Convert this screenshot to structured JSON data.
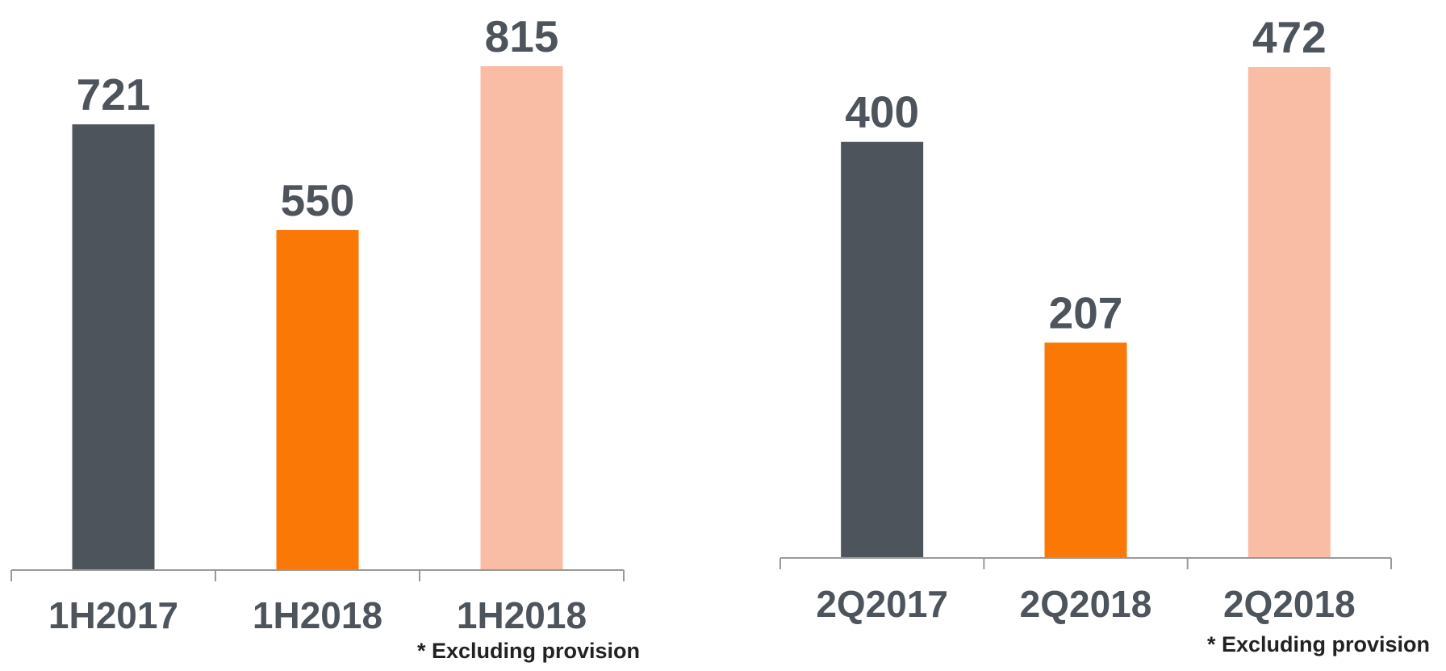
{
  "chart_data": [
    {
      "type": "bar",
      "categories": [
        "1H2017",
        "1H2018",
        "1H2018"
      ],
      "values": [
        721,
        550,
        815
      ],
      "colors": [
        "#4d545b",
        "#f97806",
        "#f9bda6"
      ],
      "note": "* Excluding provision"
    },
    {
      "type": "bar",
      "categories": [
        "2Q2017",
        "2Q2018",
        "2Q2018"
      ],
      "values": [
        400,
        207,
        472
      ],
      "colors": [
        "#4d545b",
        "#f97806",
        "#f9bda6"
      ],
      "note": "* Excluding provision"
    }
  ]
}
